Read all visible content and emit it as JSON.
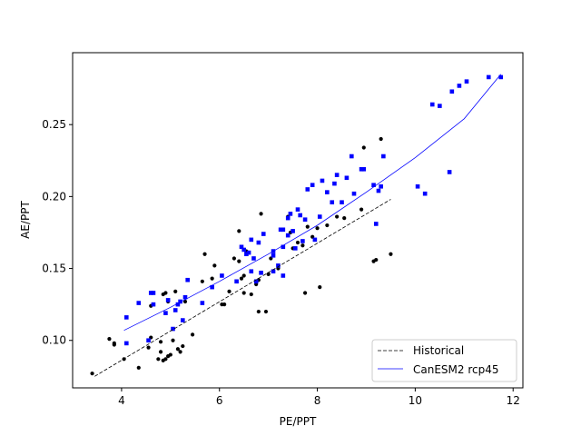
{
  "chart_data": {
    "type": "scatter",
    "title": "",
    "xlabel": "PE/PPT",
    "ylabel": "AE/PPT",
    "xlim": [
      3.0,
      12.2
    ],
    "ylim": [
      0.067,
      0.3
    ],
    "xticks": [
      4,
      6,
      8,
      10,
      12
    ],
    "yticks": [
      0.1,
      0.15,
      0.2,
      0.25
    ],
    "xtick_labels": [
      "4",
      "6",
      "8",
      "10",
      "12"
    ],
    "ytick_labels": [
      "0.10",
      "0.15",
      "0.20",
      "0.25"
    ],
    "grid": false,
    "legend_position": "lower-right",
    "series": [
      {
        "name": "Historical",
        "marker": "circle",
        "color": "#000000",
        "line_style": "dashed",
        "fit_line": [
          [
            3.45,
            0.075
          ],
          [
            9.5,
            0.198
          ]
        ],
        "points": [
          [
            3.4,
            0.077
          ],
          [
            3.75,
            0.101
          ],
          [
            3.85,
            0.097
          ],
          [
            3.85,
            0.098
          ],
          [
            4.05,
            0.087
          ],
          [
            4.35,
            0.081
          ],
          [
            4.55,
            0.095
          ],
          [
            4.6,
            0.102
          ],
          [
            4.6,
            0.124
          ],
          [
            4.65,
            0.125
          ],
          [
            4.75,
            0.087
          ],
          [
            4.8,
            0.092
          ],
          [
            4.8,
            0.099
          ],
          [
            4.85,
            0.086
          ],
          [
            4.85,
            0.132
          ],
          [
            4.9,
            0.087
          ],
          [
            4.9,
            0.133
          ],
          [
            4.95,
            0.089
          ],
          [
            4.95,
            0.127
          ],
          [
            5.0,
            0.09
          ],
          [
            5.05,
            0.1
          ],
          [
            5.1,
            0.134
          ],
          [
            5.15,
            0.094
          ],
          [
            5.2,
            0.092
          ],
          [
            5.25,
            0.096
          ],
          [
            5.3,
            0.127
          ],
          [
            5.45,
            0.104
          ],
          [
            5.65,
            0.141
          ],
          [
            5.7,
            0.16
          ],
          [
            5.85,
            0.143
          ],
          [
            5.9,
            0.152
          ],
          [
            6.05,
            0.125
          ],
          [
            6.1,
            0.125
          ],
          [
            6.2,
            0.134
          ],
          [
            6.3,
            0.157
          ],
          [
            6.4,
            0.155
          ],
          [
            6.4,
            0.176
          ],
          [
            6.45,
            0.143
          ],
          [
            6.5,
            0.133
          ],
          [
            6.5,
            0.145
          ],
          [
            6.55,
            0.162
          ],
          [
            6.65,
            0.132
          ],
          [
            6.75,
            0.139
          ],
          [
            6.8,
            0.12
          ],
          [
            6.8,
            0.142
          ],
          [
            6.85,
            0.188
          ],
          [
            6.95,
            0.12
          ],
          [
            7.0,
            0.146
          ],
          [
            7.05,
            0.157
          ],
          [
            7.2,
            0.15
          ],
          [
            7.3,
            0.177
          ],
          [
            7.4,
            0.186
          ],
          [
            7.45,
            0.175
          ],
          [
            7.5,
            0.164
          ],
          [
            7.6,
            0.168
          ],
          [
            7.7,
            0.166
          ],
          [
            7.75,
            0.133
          ],
          [
            7.8,
            0.179
          ],
          [
            7.9,
            0.172
          ],
          [
            8.0,
            0.178
          ],
          [
            8.05,
            0.137
          ],
          [
            8.2,
            0.18
          ],
          [
            8.4,
            0.186
          ],
          [
            8.55,
            0.185
          ],
          [
            8.9,
            0.191
          ],
          [
            8.95,
            0.234
          ],
          [
            9.15,
            0.155
          ],
          [
            9.2,
            0.156
          ],
          [
            9.3,
            0.24
          ],
          [
            9.5,
            0.16
          ]
        ]
      },
      {
        "name": "CanESM2 rcp45",
        "marker": "square",
        "color": "#0000ff",
        "line_style": "solid",
        "fit_line": [
          [
            4.05,
            0.107
          ],
          [
            5.0,
            0.123
          ],
          [
            6.0,
            0.141
          ],
          [
            7.0,
            0.16
          ],
          [
            8.0,
            0.18
          ],
          [
            9.0,
            0.203
          ],
          [
            10.0,
            0.227
          ],
          [
            11.0,
            0.254
          ],
          [
            11.75,
            0.285
          ]
        ],
        "points": [
          [
            4.1,
            0.116
          ],
          [
            4.1,
            0.098
          ],
          [
            4.35,
            0.126
          ],
          [
            4.55,
            0.1
          ],
          [
            4.6,
            0.133
          ],
          [
            4.65,
            0.133
          ],
          [
            4.65,
            0.125
          ],
          [
            4.9,
            0.119
          ],
          [
            4.95,
            0.128
          ],
          [
            5.05,
            0.108
          ],
          [
            5.1,
            0.121
          ],
          [
            5.15,
            0.125
          ],
          [
            5.2,
            0.127
          ],
          [
            5.25,
            0.114
          ],
          [
            5.3,
            0.13
          ],
          [
            5.35,
            0.142
          ],
          [
            5.65,
            0.126
          ],
          [
            5.85,
            0.137
          ],
          [
            6.05,
            0.145
          ],
          [
            6.35,
            0.141
          ],
          [
            6.45,
            0.165
          ],
          [
            6.5,
            0.163
          ],
          [
            6.55,
            0.16
          ],
          [
            6.6,
            0.161
          ],
          [
            6.65,
            0.17
          ],
          [
            6.65,
            0.148
          ],
          [
            6.7,
            0.157
          ],
          [
            6.75,
            0.141
          ],
          [
            6.8,
            0.168
          ],
          [
            6.85,
            0.147
          ],
          [
            6.9,
            0.174
          ],
          [
            7.1,
            0.162
          ],
          [
            7.1,
            0.159
          ],
          [
            7.1,
            0.148
          ],
          [
            7.2,
            0.152
          ],
          [
            7.25,
            0.177
          ],
          [
            7.3,
            0.177
          ],
          [
            7.3,
            0.145
          ],
          [
            7.3,
            0.165
          ],
          [
            7.4,
            0.173
          ],
          [
            7.4,
            0.185
          ],
          [
            7.45,
            0.188
          ],
          [
            7.5,
            0.176
          ],
          [
            7.55,
            0.164
          ],
          [
            7.6,
            0.191
          ],
          [
            7.65,
            0.187
          ],
          [
            7.7,
            0.169
          ],
          [
            7.75,
            0.184
          ],
          [
            7.8,
            0.205
          ],
          [
            7.9,
            0.208
          ],
          [
            7.95,
            0.17
          ],
          [
            8.05,
            0.186
          ],
          [
            8.1,
            0.211
          ],
          [
            8.2,
            0.203
          ],
          [
            8.3,
            0.196
          ],
          [
            8.35,
            0.209
          ],
          [
            8.4,
            0.215
          ],
          [
            8.5,
            0.196
          ],
          [
            8.6,
            0.213
          ],
          [
            8.7,
            0.228
          ],
          [
            8.75,
            0.202
          ],
          [
            8.9,
            0.219
          ],
          [
            8.95,
            0.219
          ],
          [
            9.15,
            0.208
          ],
          [
            9.2,
            0.181
          ],
          [
            9.25,
            0.204
          ],
          [
            9.3,
            0.207
          ],
          [
            9.35,
            0.228
          ],
          [
            10.05,
            0.207
          ],
          [
            10.2,
            0.202
          ],
          [
            10.35,
            0.264
          ],
          [
            10.5,
            0.263
          ],
          [
            10.7,
            0.217
          ],
          [
            10.75,
            0.273
          ],
          [
            10.9,
            0.277
          ],
          [
            11.05,
            0.28
          ],
          [
            11.5,
            0.283
          ],
          [
            11.75,
            0.283
          ]
        ]
      }
    ]
  }
}
